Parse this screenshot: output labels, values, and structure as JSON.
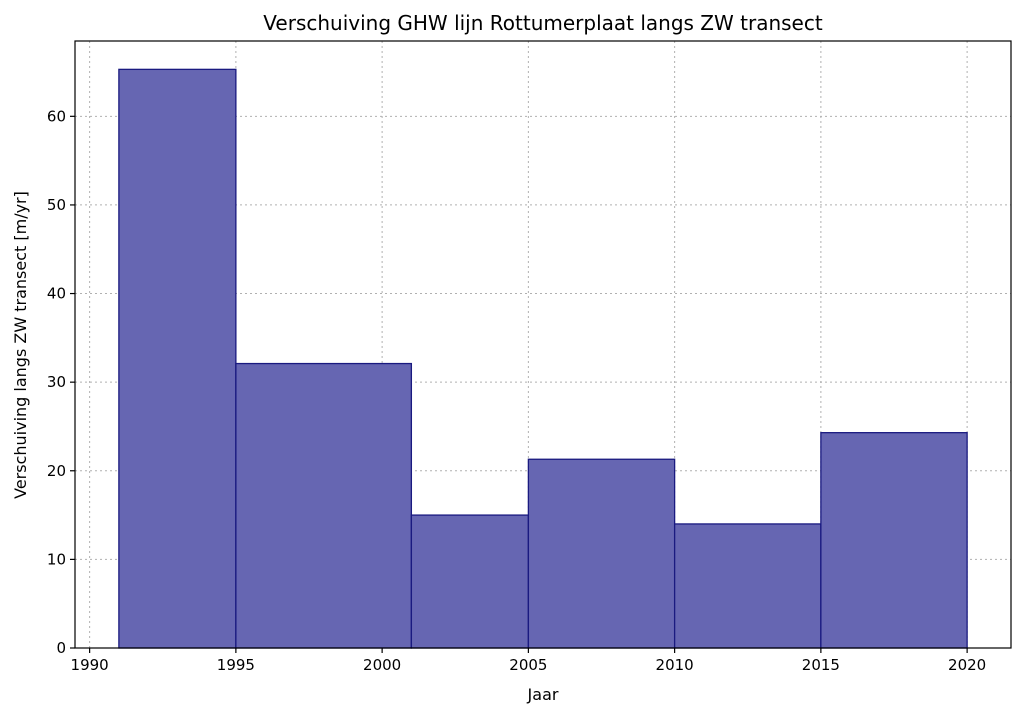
{
  "chart_data": {
    "type": "bar",
    "title": "Verschuiving GHW lijn Rottumerplaat langs ZW transect",
    "xlabel": "Jaar",
    "ylabel": "Verschuiving langs ZW transect [m/yr]",
    "xlim": [
      1989.5,
      2021.5
    ],
    "ylim": [
      0,
      68.5
    ],
    "x_ticks": [
      1990,
      1995,
      2000,
      2005,
      2010,
      2015,
      2020
    ],
    "y_ticks": [
      0,
      10,
      20,
      30,
      40,
      50,
      60
    ],
    "grid": true,
    "bars": [
      {
        "start": 1991,
        "end": 1995,
        "value": 65.3
      },
      {
        "start": 1995,
        "end": 2001,
        "value": 32.1
      },
      {
        "start": 2001,
        "end": 2005,
        "value": 15.0
      },
      {
        "start": 2005,
        "end": 2010,
        "value": 21.3
      },
      {
        "start": 2010,
        "end": 2015,
        "value": 14.0
      },
      {
        "start": 2015,
        "end": 2020,
        "value": 24.3
      }
    ],
    "bar_fill": "#6666b2",
    "bar_edge": "#1a1a80"
  }
}
